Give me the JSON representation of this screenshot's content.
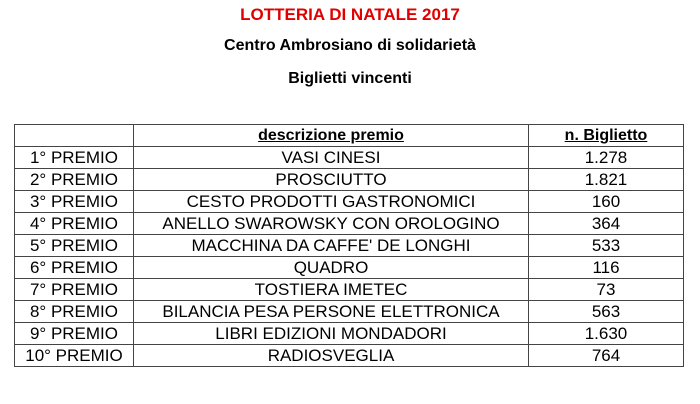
{
  "title": "LOTTERIA DI NATALE 2017",
  "organization": "Centro Ambrosiano di solidarietà",
  "subtitle": "Biglietti vincenti",
  "colors": {
    "title": "#e00000",
    "text": "#000000"
  },
  "table": {
    "headers": [
      "",
      "descrizione premio",
      "n. Biglietto"
    ],
    "rows": [
      [
        "1° PREMIO",
        "VASI CINESI",
        "1.278"
      ],
      [
        "2° PREMIO",
        "PROSCIUTTO",
        "1.821"
      ],
      [
        "3° PREMIO",
        "CESTO PRODOTTI GASTRONOMICI",
        "160"
      ],
      [
        "4° PREMIO",
        "ANELLO SWAROWSKY CON OROLOGINO",
        "364"
      ],
      [
        "5° PREMIO",
        "MACCHINA DA CAFFE' DE LONGHI",
        "533"
      ],
      [
        "6° PREMIO",
        "QUADRO",
        "116"
      ],
      [
        "7° PREMIO",
        "TOSTIERA IMETEC",
        "73"
      ],
      [
        "8° PREMIO",
        "BILANCIA PESA PERSONE ELETTRONICA",
        "563"
      ],
      [
        "9° PREMIO",
        "LIBRI EDIZIONI MONDADORI",
        "1.630"
      ],
      [
        "10° PREMIO",
        "RADIOSVEGLIA",
        "764"
      ]
    ]
  }
}
